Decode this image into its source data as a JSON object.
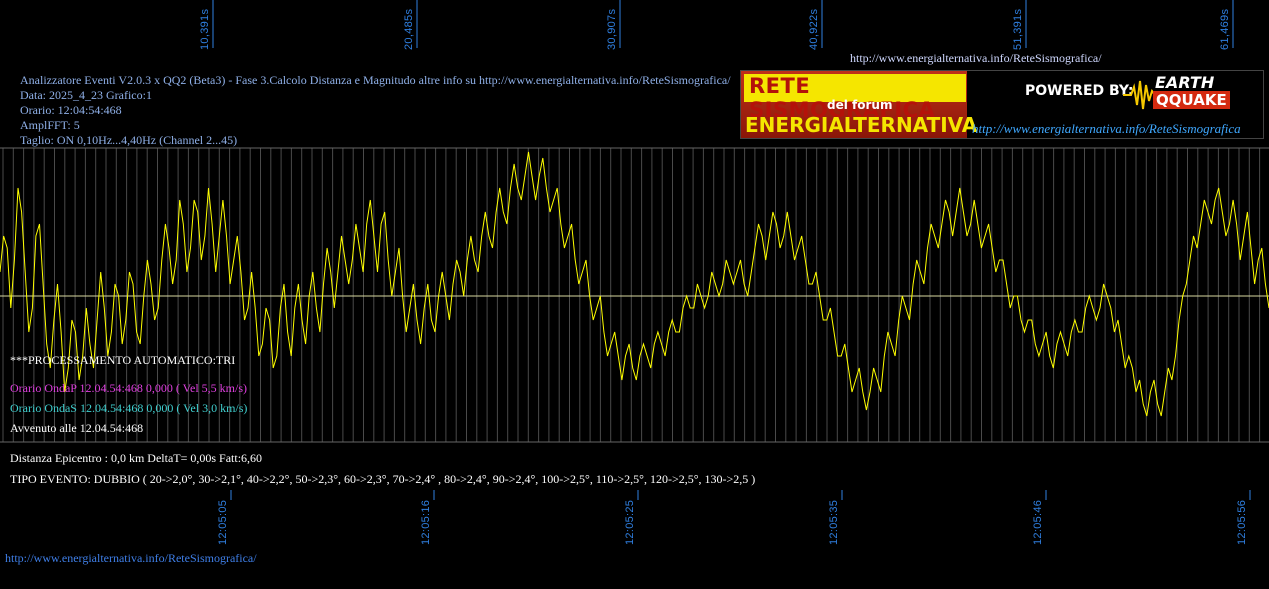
{
  "header": {
    "top_url": "http://www.energialternativa.info/ReteSismografica/",
    "info_lines": [
      "Analizzatore Eventi V2.0.3 x QQ2 (Beta3) - Fase 3.Calcolo Distanza e Magnitudo altre info su http://www.energialternativa.info/ReteSismografica/",
      "Data: 2025_4_23 Grafico:1",
      "Orario: 12:04:54:468",
      "AmplFFT: 5",
      "Taglio: ON 0,10Hz...4,40Hz      (Channel 2...45)"
    ]
  },
  "logo": {
    "title1": "RETE SISMOGRAFICA",
    "title2": "del forum",
    "title3": "ENERGIALTERNATIVA",
    "powered": "POWERED BY:",
    "earth": "EARTH",
    "quake": "QQUAKE",
    "url": "http://www.energialternativa.info/ReteSismografica"
  },
  "panel": {
    "processing": "***PROCESSAMENTO AUTOMATICO:TRI",
    "onda_p": "Orario OndaP 12.04.54:468  0,000 ( Vel 5,5 km/s)",
    "onda_s": "Orario OndaS 12.04.54:468  0,000 ( Vel 3,0 km/s)",
    "avvenuto": "Avvenuto alle 12.04.54:468",
    "distanza": "Distanza Epicentro : 0,0 km DeltaT= 0,00s  Fatt:6,60",
    "tipo_evento": "TIPO EVENTO: DUBBIO ( 20->2,0°, 30->2,1°, 40->2,2°, 50->2,3°, 60->2,3°, 70->2,4° , 80->2,4°, 90->2,4°, 100->2,5°, 110->2,5°, 120->2,5°, 130->2,5 )"
  },
  "footer": {
    "url": "http://www.energialternativa.info/ReteSismografica/"
  },
  "colors": {
    "background": "#000000",
    "signal": "#ffff00",
    "grid": "#555555",
    "tick_text": "#2f7fe0",
    "onda_p": "#e040e0",
    "onda_s": "#40d0d0",
    "white_text": "#ffffff"
  },
  "chart_data": {
    "type": "line",
    "top_ticks": [
      "10,391s",
      "20,485s",
      "30,907s",
      "40,922s",
      "51,391s",
      "61,469s"
    ],
    "bottom_ticks": [
      "12:05:05",
      "12:05:16",
      "12:05:25",
      "12:05:35",
      "12:05:46",
      "12:05:56"
    ],
    "grid": true,
    "series": [
      {
        "values": [
          0.2,
          0.5,
          0.4,
          -0.1,
          0.3,
          0.9,
          0.7,
          0.2,
          -0.3,
          -0.1,
          0.5,
          0.6,
          0.1,
          -0.4,
          -0.6,
          -0.2,
          0.1,
          -0.3,
          -0.8,
          -0.6,
          -0.2,
          -0.3,
          -0.7,
          -0.5,
          -0.1,
          -0.4,
          -0.6,
          -0.2,
          0.2,
          -0.1,
          -0.5,
          -0.3,
          0.1,
          0.0,
          -0.4,
          -0.2,
          0.2,
          0.1,
          -0.3,
          -0.4,
          0.0,
          0.3,
          0.1,
          -0.2,
          -0.1,
          0.3,
          0.6,
          0.4,
          0.1,
          0.3,
          0.8,
          0.6,
          0.2,
          0.4,
          0.8,
          0.7,
          0.3,
          0.5,
          0.9,
          0.6,
          0.2,
          0.5,
          0.8,
          0.5,
          0.1,
          0.3,
          0.5,
          0.2,
          -0.2,
          -0.1,
          0.2,
          -0.1,
          -0.5,
          -0.4,
          -0.1,
          -0.2,
          -0.6,
          -0.5,
          -0.1,
          0.1,
          -0.3,
          -0.5,
          -0.1,
          0.1,
          -0.2,
          -0.4,
          0.0,
          0.2,
          -0.1,
          -0.3,
          0.1,
          0.4,
          0.2,
          -0.1,
          0.2,
          0.5,
          0.3,
          0.1,
          0.3,
          0.6,
          0.4,
          0.2,
          0.6,
          0.8,
          0.5,
          0.2,
          0.6,
          0.7,
          0.3,
          0.0,
          0.2,
          0.4,
          0.0,
          -0.3,
          -0.1,
          0.1,
          -0.2,
          -0.4,
          -0.1,
          0.1,
          -0.2,
          -0.3,
          0.0,
          0.2,
          0.0,
          -0.2,
          0.1,
          0.3,
          0.2,
          0.0,
          0.3,
          0.5,
          0.3,
          0.2,
          0.5,
          0.7,
          0.5,
          0.4,
          0.7,
          0.9,
          0.7,
          0.6,
          0.9,
          1.1,
          0.9,
          0.8,
          1.0,
          1.2,
          1.0,
          0.8,
          1.0,
          1.15,
          0.9,
          0.7,
          0.8,
          0.9,
          0.6,
          0.4,
          0.5,
          0.6,
          0.3,
          0.1,
          0.2,
          0.3,
          0.0,
          -0.2,
          -0.1,
          0.0,
          -0.3,
          -0.5,
          -0.4,
          -0.3,
          -0.5,
          -0.7,
          -0.5,
          -0.4,
          -0.6,
          -0.7,
          -0.5,
          -0.4,
          -0.5,
          -0.6,
          -0.4,
          -0.3,
          -0.4,
          -0.5,
          -0.3,
          -0.2,
          -0.3,
          -0.3,
          -0.1,
          0.0,
          -0.1,
          -0.1,
          0.1,
          0.0,
          -0.1,
          0.0,
          0.2,
          0.1,
          0.0,
          0.1,
          0.3,
          0.2,
          0.1,
          0.2,
          0.3,
          0.1,
          0.0,
          0.2,
          0.4,
          0.6,
          0.5,
          0.3,
          0.5,
          0.7,
          0.6,
          0.4,
          0.5,
          0.7,
          0.5,
          0.3,
          0.4,
          0.5,
          0.3,
          0.1,
          0.1,
          0.2,
          0.0,
          -0.2,
          -0.2,
          -0.1,
          -0.3,
          -0.5,
          -0.5,
          -0.4,
          -0.6,
          -0.8,
          -0.7,
          -0.6,
          -0.8,
          -0.95,
          -0.8,
          -0.6,
          -0.7,
          -0.8,
          -0.5,
          -0.3,
          -0.4,
          -0.5,
          -0.2,
          0.0,
          -0.1,
          -0.2,
          0.1,
          0.3,
          0.2,
          0.1,
          0.4,
          0.6,
          0.5,
          0.4,
          0.6,
          0.8,
          0.7,
          0.5,
          0.7,
          0.9,
          0.7,
          0.5,
          0.6,
          0.8,
          0.6,
          0.4,
          0.5,
          0.6,
          0.4,
          0.2,
          0.3,
          0.3,
          0.1,
          -0.1,
          0.0,
          0.0,
          -0.2,
          -0.3,
          -0.2,
          -0.2,
          -0.4,
          -0.5,
          -0.4,
          -0.3,
          -0.5,
          -0.6,
          -0.4,
          -0.3,
          -0.4,
          -0.5,
          -0.3,
          -0.2,
          -0.3,
          -0.3,
          -0.1,
          0.0,
          -0.1,
          -0.2,
          -0.1,
          0.1,
          0.0,
          -0.1,
          -0.3,
          -0.2,
          -0.4,
          -0.6,
          -0.5,
          -0.6,
          -0.8,
          -0.7,
          -0.9,
          -1.0,
          -0.8,
          -0.7,
          -0.9,
          -1.0,
          -0.8,
          -0.6,
          -0.7,
          -0.5,
          -0.2,
          0.0,
          0.1,
          0.3,
          0.5,
          0.4,
          0.6,
          0.8,
          0.7,
          0.6,
          0.8,
          0.9,
          0.7,
          0.5,
          0.6,
          0.8,
          0.6,
          0.3,
          0.5,
          0.7,
          0.4,
          0.1,
          0.3,
          0.4,
          0.1,
          -0.1
        ]
      }
    ]
  }
}
